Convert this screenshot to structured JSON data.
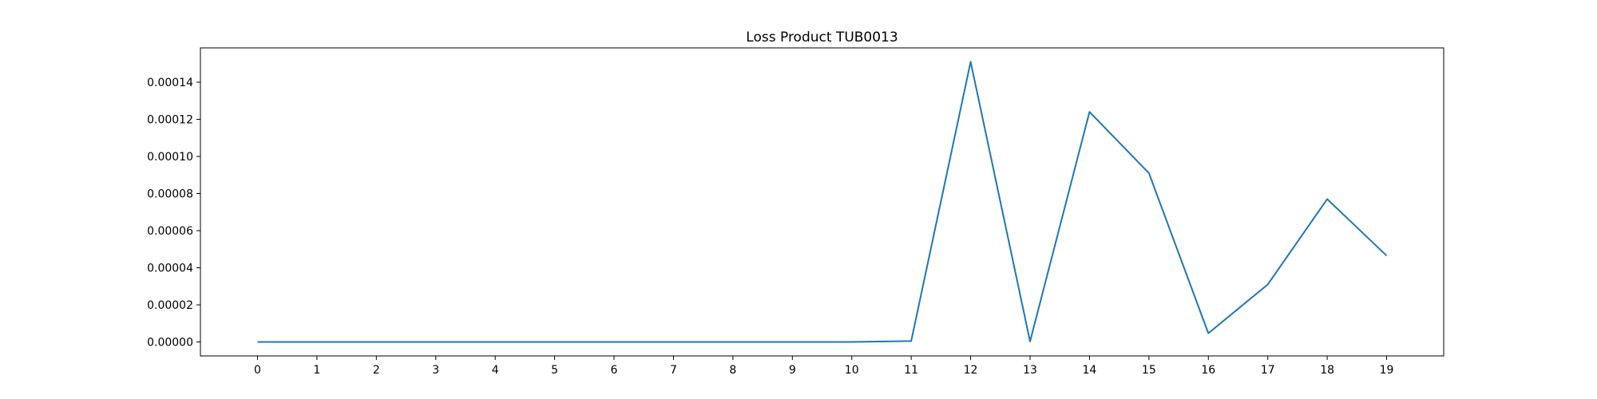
{
  "chart_data": {
    "type": "line",
    "title": "Loss Product TUB0013",
    "xlabel": "",
    "ylabel": "",
    "x": [
      0,
      1,
      2,
      3,
      4,
      5,
      6,
      7,
      8,
      9,
      10,
      11,
      12,
      13,
      14,
      15,
      16,
      17,
      18,
      19
    ],
    "x_tick_labels": [
      "0",
      "1",
      "2",
      "3",
      "4",
      "5",
      "6",
      "7",
      "8",
      "9",
      "10",
      "11",
      "12",
      "13",
      "14",
      "15",
      "16",
      "17",
      "18",
      "19"
    ],
    "series": [
      {
        "values": [
          0,
          0,
          0,
          0,
          0,
          0,
          0,
          0,
          0,
          0,
          0,
          5e-07,
          0.000151,
          3e-07,
          0.000124,
          9.1e-05,
          4.7e-06,
          3.1e-05,
          7.7e-05,
          4.65e-05
        ],
        "color": "#1f77b4"
      }
    ],
    "y_ticks": [
      0,
      2e-05,
      4e-05,
      6e-05,
      8e-05,
      0.0001,
      0.00012,
      0.00014
    ],
    "y_tick_labels": [
      "0.00000",
      "0.00002",
      "0.00004",
      "0.00006",
      "0.00008",
      "0.00010",
      "0.00012",
      "0.00014"
    ],
    "xlim": [
      -0.96,
      19.96
    ],
    "ylim": [
      -7.5e-06,
      0.0001585
    ],
    "grid": false,
    "legend": "none"
  }
}
